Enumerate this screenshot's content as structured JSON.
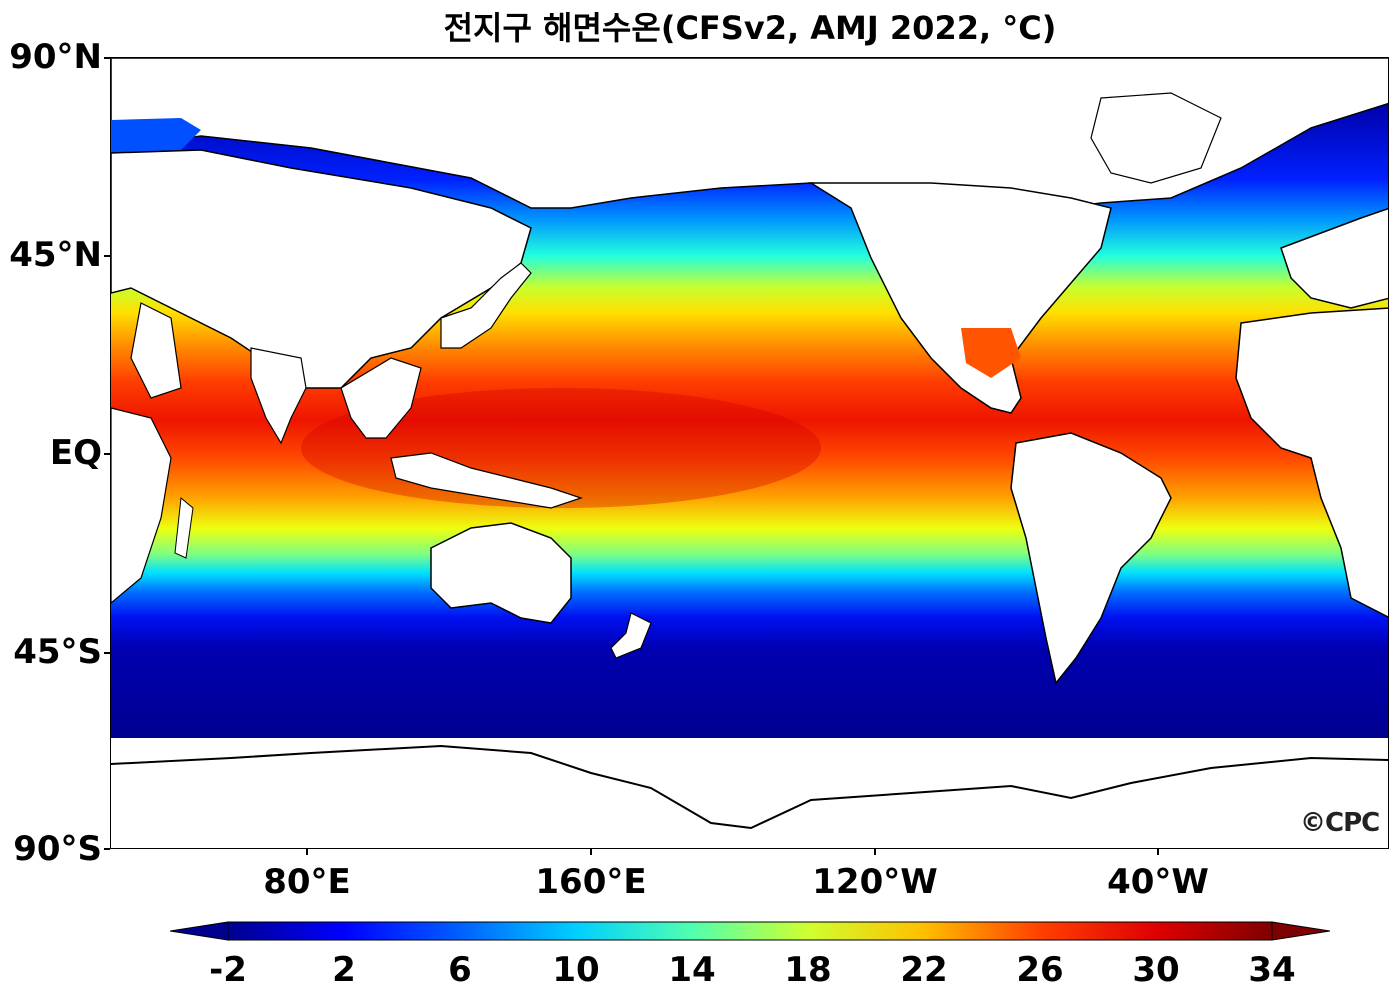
{
  "title": "전지구 해면수온(CFSv2, AMJ 2022, °C)",
  "map": {
    "type": "sea-surface-temperature",
    "lat_labels": [
      "90°N",
      "45°N",
      "EQ",
      "45°S",
      "90°S"
    ],
    "lat_values": [
      90,
      45,
      0,
      -45,
      -90
    ],
    "lon_labels": [
      "80°E",
      "160°E",
      "120°W",
      "40°W"
    ],
    "lon_values": [
      80,
      160,
      240,
      320
    ],
    "lon_range": [
      25,
      385
    ],
    "credit": "©CPC"
  },
  "colorbar": {
    "labels": [
      "-2",
      "2",
      "6",
      "10",
      "14",
      "18",
      "22",
      "26",
      "30",
      "34"
    ],
    "values": [
      -2,
      2,
      6,
      10,
      14,
      18,
      22,
      26,
      30,
      34
    ],
    "range": [
      -2,
      34
    ],
    "extend": "both",
    "colors": [
      "#00007f",
      "#0000ff",
      "#007fff",
      "#00ffff",
      "#7fff7f",
      "#ffff00",
      "#ff7f00",
      "#ff0000",
      "#7f0000"
    ]
  }
}
